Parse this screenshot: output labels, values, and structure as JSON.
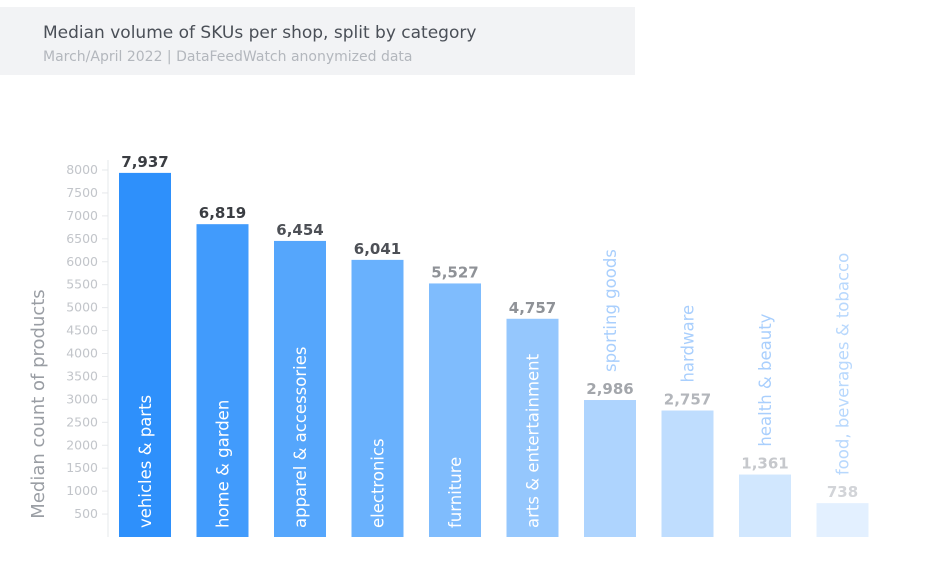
{
  "header": {
    "title": "Median volume of SKUs per shop, split by category",
    "subtitle": "March/April 2022 | DataFeedWatch anonymized data"
  },
  "chart_data": {
    "type": "bar",
    "title": "Median volume of SKUs per shop, split by category",
    "subtitle": "March/April 2022 | DataFeedWatch anonymized data",
    "xlabel": "",
    "ylabel": "Median count of products",
    "ylim": [
      0,
      8000
    ],
    "yticks": [
      500,
      1000,
      1500,
      2000,
      2500,
      3000,
      3500,
      4000,
      4500,
      5000,
      5500,
      6000,
      6500,
      7000,
      7500,
      8000
    ],
    "grid": false,
    "categories": [
      "vehicles & parts",
      "home & garden",
      "apparel & accessories",
      "electronics",
      "furniture",
      "arts & entertainment",
      "sporting goods",
      "hardware",
      "health & beauty",
      "food, beverages & tobacco"
    ],
    "values": [
      7937,
      6819,
      6454,
      6041,
      5527,
      4757,
      2986,
      2757,
      1361,
      738
    ],
    "value_labels": [
      "7,937",
      "6,819",
      "6,454",
      "6,041",
      "5,527",
      "4,757",
      "2,986",
      "2,757",
      "1,361",
      "738"
    ],
    "colors": [
      "#2e90fb",
      "#419bfc",
      "#55a6fc",
      "#69b1fd",
      "#7fbcfd",
      "#95c7fd",
      "#aed4fe",
      "#bfddfe",
      "#d1e7fe",
      "#e3f0ff"
    ],
    "label_colors": [
      "#3a3d42",
      "#3a3d42",
      "#4d5056",
      "#4d5056",
      "#8f9297",
      "#8f9297",
      "#a3a6ab",
      "#b3b6bb",
      "#c6c8cc",
      "#d2d4d8"
    ]
  }
}
